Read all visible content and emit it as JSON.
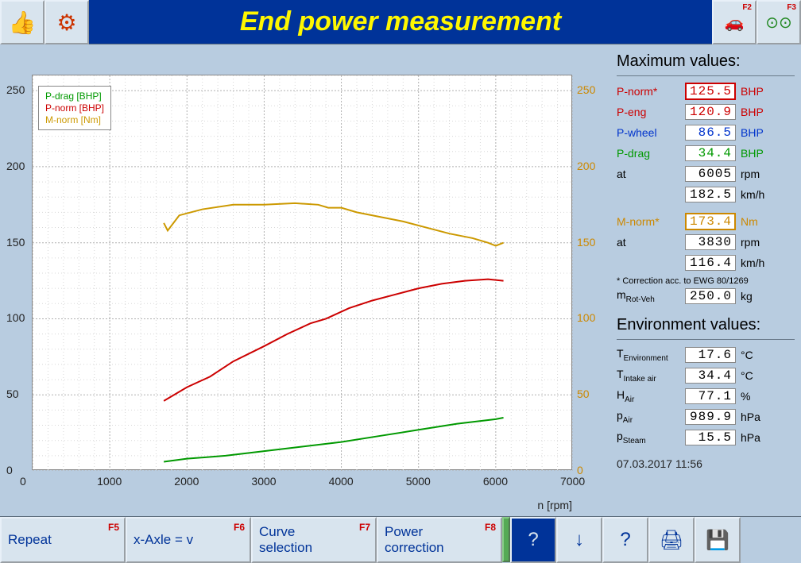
{
  "header": {
    "title": "End power measurement",
    "f2_label": "F2",
    "f3_label": "F3"
  },
  "chart": {
    "type": "line",
    "xlabel": "n [rpm]",
    "xlim": [
      0,
      7000
    ],
    "xtick_step": 1000,
    "xticks": [
      0,
      1000,
      2000,
      3000,
      4000,
      5000,
      6000,
      7000
    ],
    "left_axis": {
      "ylim": [
        0,
        260
      ],
      "yticks": [
        0,
        50,
        100,
        150,
        200,
        250
      ],
      "color": "#222"
    },
    "right_axis": {
      "ylim": [
        0,
        260
      ],
      "yticks": [
        0,
        50,
        100,
        150,
        200,
        250
      ],
      "color": "#cc8800"
    },
    "background_color": "#ffffff",
    "grid_color": "#b0b0b0",
    "grid_dash": "2,2",
    "series": [
      {
        "name": "P-drag [BHP]",
        "color": "#009900",
        "line_width": 2,
        "points": [
          [
            1700,
            6
          ],
          [
            2000,
            8
          ],
          [
            2500,
            10
          ],
          [
            3000,
            13
          ],
          [
            3500,
            16
          ],
          [
            4000,
            19
          ],
          [
            4500,
            23
          ],
          [
            5000,
            27
          ],
          [
            5500,
            31
          ],
          [
            6000,
            34
          ],
          [
            6100,
            35
          ]
        ]
      },
      {
        "name": "P-norm [BHP]",
        "color": "#cc0000",
        "line_width": 2,
        "points": [
          [
            1700,
            46
          ],
          [
            2000,
            55
          ],
          [
            2300,
            62
          ],
          [
            2600,
            72
          ],
          [
            3000,
            82
          ],
          [
            3300,
            90
          ],
          [
            3600,
            97
          ],
          [
            3800,
            100
          ],
          [
            4100,
            107
          ],
          [
            4400,
            112
          ],
          [
            4700,
            116
          ],
          [
            5000,
            120
          ],
          [
            5300,
            123
          ],
          [
            5600,
            125
          ],
          [
            5900,
            126
          ],
          [
            6100,
            125
          ]
        ]
      },
      {
        "name": "M-norm [Nm]",
        "color": "#cc9900",
        "line_width": 2,
        "points": [
          [
            1700,
            163
          ],
          [
            1750,
            158
          ],
          [
            1900,
            168
          ],
          [
            2200,
            172
          ],
          [
            2600,
            175
          ],
          [
            3000,
            175
          ],
          [
            3400,
            176
          ],
          [
            3700,
            175
          ],
          [
            3830,
            173
          ],
          [
            4000,
            173
          ],
          [
            4200,
            170
          ],
          [
            4500,
            167
          ],
          [
            4800,
            164
          ],
          [
            5100,
            160
          ],
          [
            5400,
            156
          ],
          [
            5700,
            153
          ],
          [
            5900,
            150
          ],
          [
            6000,
            148
          ],
          [
            6100,
            150
          ]
        ]
      }
    ],
    "legend": {
      "position": "upper-left",
      "border": "#888888",
      "bg": "#ffffff"
    }
  },
  "max_values": {
    "heading": "Maximum values:",
    "rows": [
      {
        "label": "P-norm*",
        "value": "125.5",
        "unit": "BHP",
        "style": "red",
        "boxed": "red"
      },
      {
        "label": "P-eng",
        "value": "120.9",
        "unit": "BHP",
        "style": "red"
      },
      {
        "label": "P-wheel",
        "value": "86.5",
        "unit": "BHP",
        "style": "blue"
      },
      {
        "label": "P-drag",
        "value": "34.4",
        "unit": "BHP",
        "style": "green"
      },
      {
        "label": "at",
        "value": "6005",
        "unit": "rpm",
        "style": ""
      },
      {
        "label": "",
        "value": "182.5",
        "unit": "km/h",
        "style": ""
      }
    ],
    "mnorm": {
      "label": "M-norm*",
      "value": "173.4",
      "unit": "Nm",
      "style": "orange",
      "boxed": "orange"
    },
    "mnorm_at": [
      {
        "label": "at",
        "value": "3830",
        "unit": "rpm"
      },
      {
        "label": "",
        "value": "116.4",
        "unit": "km/h"
      }
    ],
    "note": "* Correction acc. to EWG 80/1269",
    "mrot": {
      "label": "m",
      "sub": "Rot-Veh",
      "value": "250.0",
      "unit": "kg"
    }
  },
  "env_values": {
    "heading": "Environment values:",
    "rows": [
      {
        "label": "T",
        "sub": "Environment",
        "value": "17.6",
        "unit": "°C"
      },
      {
        "label": "T",
        "sub": "Intake air",
        "value": "34.4",
        "unit": "°C"
      },
      {
        "label": "H",
        "sub": "Air",
        "value": "77.1",
        "unit": "%"
      },
      {
        "label": "p",
        "sub": "Air",
        "value": "989.9",
        "unit": "hPa"
      },
      {
        "label": "p",
        "sub": "Steam",
        "value": "15.5",
        "unit": "hPa"
      }
    ]
  },
  "timestamp": "07.03.2017  11:56",
  "bottombar": {
    "buttons": [
      {
        "label": "Repeat",
        "fkey": "F5",
        "width": 158
      },
      {
        "label": "x-Axle = v",
        "fkey": "F6",
        "width": 158
      },
      {
        "label": "Curve\nselection",
        "fkey": "F7",
        "width": 158
      },
      {
        "label": "Power\ncorrection",
        "fkey": "F8",
        "width": 158
      }
    ]
  }
}
